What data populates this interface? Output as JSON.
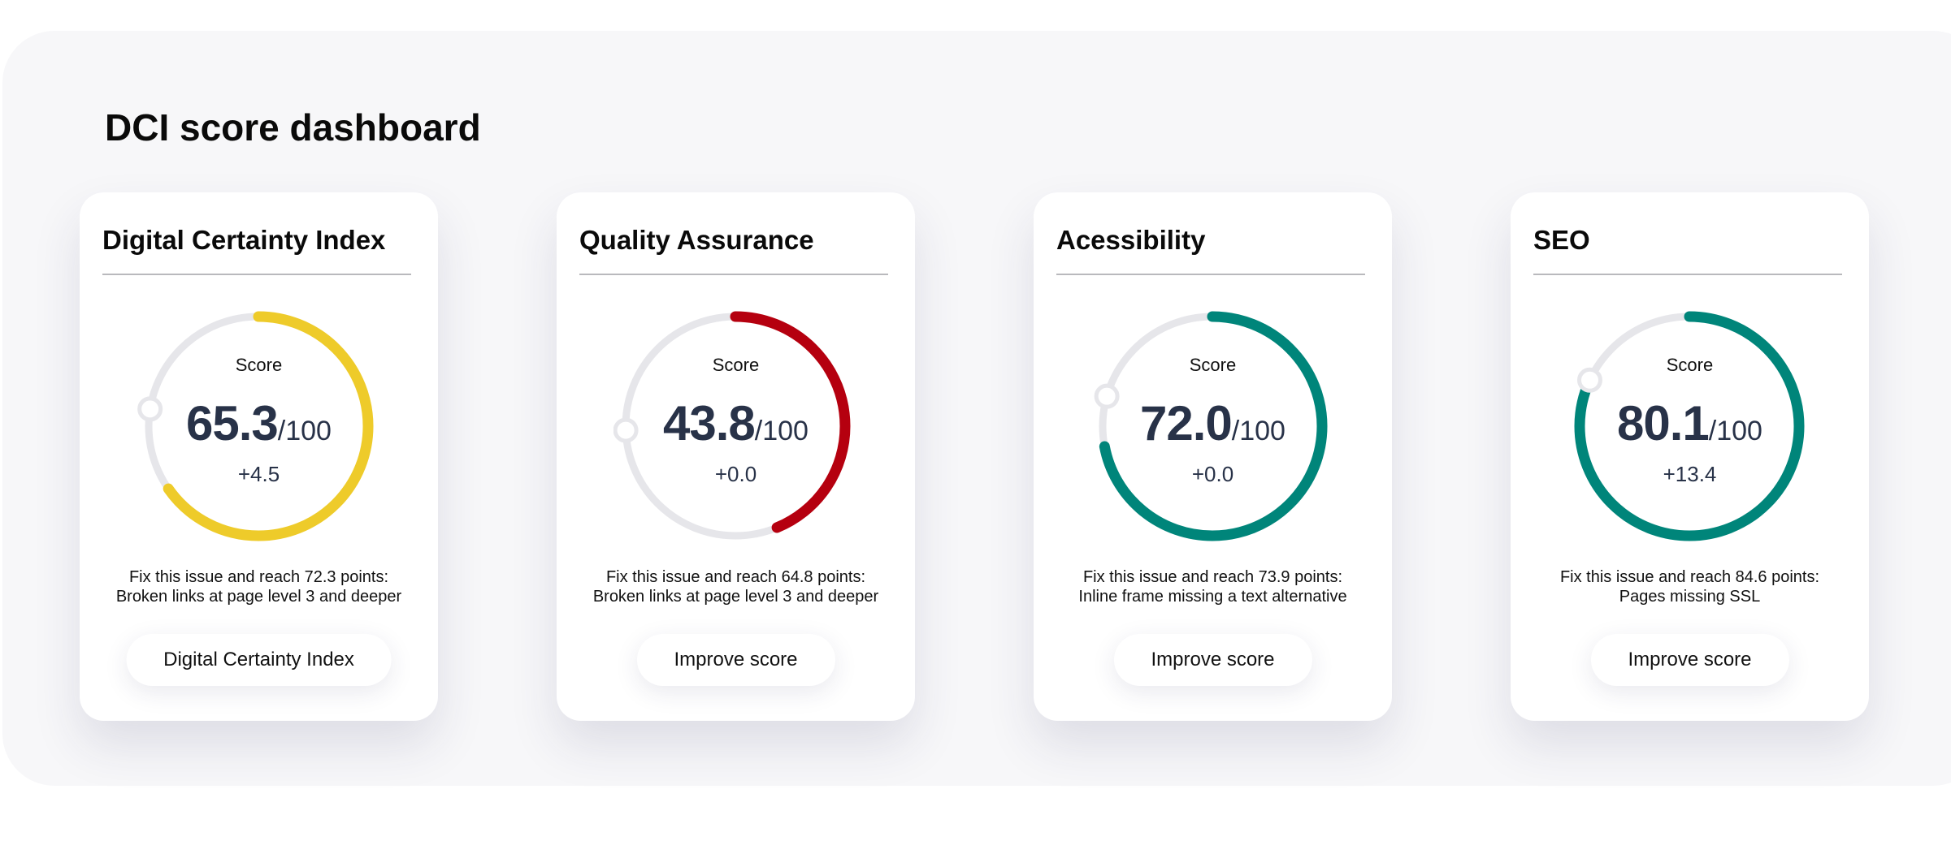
{
  "page": {
    "title": "DCI score dashboard"
  },
  "colors": {
    "track": "#e6e6ea",
    "yellow": "#eecb2a",
    "red": "#b5000f",
    "teal": "#00857a",
    "text": "#283248"
  },
  "cards": [
    {
      "title": "Digital Certainty Index",
      "score_label": "Score",
      "score": "65.3",
      "max": "/100",
      "score_percent": 65.3,
      "delta": "+4.5",
      "fix_line1": "Fix this issue and reach 72.3 points:",
      "fix_line2": "Broken links at page level 3 and deeper",
      "button": "Digital Certainty Index",
      "color": "#eecb2a",
      "marker_percent": 77.5
    },
    {
      "title": "Quality Assurance",
      "score_label": "Score",
      "score": "43.8",
      "max": "/100",
      "score_percent": 43.8,
      "delta": "+0.0",
      "fix_line1": "Fix this issue and reach 64.8 points:",
      "fix_line2": "Broken links at page level 3 and deeper",
      "button": "Improve score",
      "color": "#b5000f",
      "marker_percent": 74.4
    },
    {
      "title": "Acessibility",
      "score_label": "Score",
      "score": "72.0",
      "max": "/100",
      "score_percent": 72.0,
      "delta": "+0.0",
      "fix_line1": "Fix this issue and reach 73.9 points:",
      "fix_line2": "Inline frame missing a text alternative",
      "button": "Improve score",
      "color": "#00857a",
      "marker_percent": 79.4
    },
    {
      "title": "SEO",
      "score_label": "Score",
      "score": "80.1",
      "max": "/100",
      "score_percent": 80.1,
      "delta": "+13.4",
      "fix_line1": "Fix this issue and reach 84.6 points:",
      "fix_line2": "Pages missing SSL",
      "button": "Improve score",
      "color": "#00857a",
      "marker_percent": 81.9
    }
  ]
}
